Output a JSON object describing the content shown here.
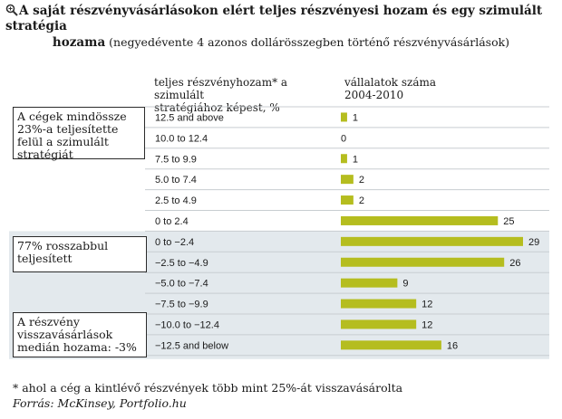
{
  "title": {
    "line1": "A saját részvényvásárlásokon elért teljes részvényesi hozam és egy szimulált stratégia",
    "line2_bold": "hozama",
    "line2_rest": " (negyedévente 4 azonos dollárösszegben történő részvényvásárlások)"
  },
  "headers": {
    "col1_line1": "teljes részvényhozam* a szimulált",
    "col1_line2": "stratégiához képest, %",
    "col2_line1": "vállalatok száma",
    "col2_line2": "2004-2010"
  },
  "notes": {
    "top": "A cégek mindössze 23%-a teljesítette felül a szimulált stratégiát",
    "middle": "77% rosszabbul teljesített",
    "bottom": "A részvény visszavásárlások medián hozama: -3%"
  },
  "footnote": "* ahol a cég a kintlévő részvények több mint 25%-át visszavásárolta",
  "source": "Forrás: McKinsey, Portfolio.hu",
  "colors": {
    "bar": "#b5bd1f",
    "band": "#e3e9ed",
    "rule": "#c8cdd1"
  },
  "chart_data": {
    "type": "bar",
    "orientation": "horizontal",
    "categories": [
      "12.5 and above",
      "10.0 to 12.4",
      "7.5 to 9.9",
      "5.0 to 7.4",
      "2.5 to 4.9",
      "0 to 2.4",
      "0 to −2.4",
      "−2.5 to −4.9",
      "−5.0 to −7.4",
      "−7.5 to −9.9",
      "−10.0 to −12.4",
      "−12.5 and below"
    ],
    "values": [
      1,
      0,
      1,
      2,
      2,
      25,
      29,
      26,
      9,
      12,
      12,
      16
    ],
    "value_labels": [
      "1",
      "0",
      "1",
      "2",
      "2",
      "25",
      "29",
      "26",
      "9",
      "12",
      "12",
      "16"
    ],
    "shaded_from_index": 6
  }
}
